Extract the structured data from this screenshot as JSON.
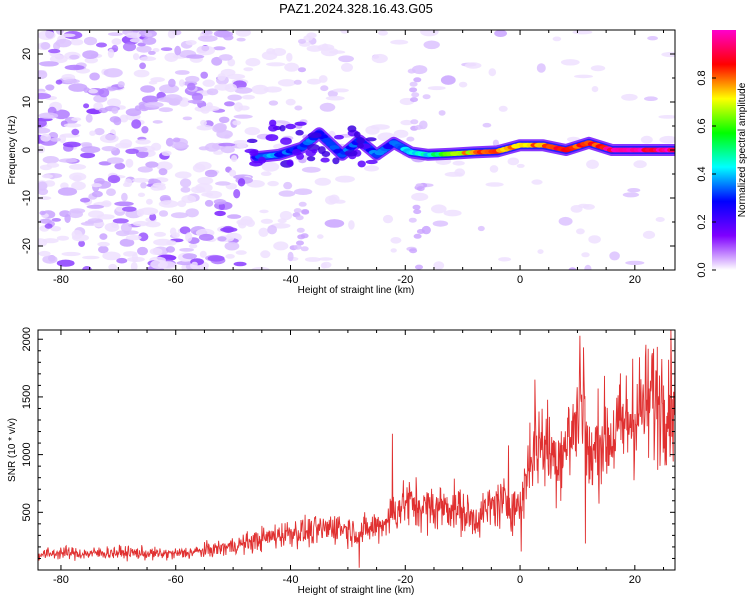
{
  "title": "PAZ1.2024.328.16.43.G05",
  "chart_data": [
    {
      "type": "heatmap",
      "xlabel": "Height of straight line (km)",
      "ylabel": "Frequency (Hz)",
      "xlim": [
        -84,
        27
      ],
      "ylim": [
        -25,
        25
      ],
      "xticks": [
        -80,
        -60,
        -40,
        -20,
        0,
        20
      ],
      "yticks": [
        -20,
        -10,
        0,
        10,
        20
      ],
      "colorbar": {
        "label": "Normalized spectral amplitude",
        "range": [
          0,
          1
        ],
        "ticks": [
          0.0,
          0.2,
          0.4,
          0.6,
          0.8
        ],
        "colormap": [
          "#ffffff",
          "#7f00ff",
          "#0000ff",
          "#00ffff",
          "#00ff00",
          "#ffff00",
          "#ff0000",
          "#ff00cc"
        ]
      },
      "ridge": [
        {
          "x": -46,
          "y": -1.5,
          "amp": 0.3
        },
        {
          "x": -42,
          "y": -1.0,
          "amp": 0.35
        },
        {
          "x": -38,
          "y": 0.5,
          "amp": 0.3
        },
        {
          "x": -35,
          "y": 3.5,
          "amp": 0.3
        },
        {
          "x": -31,
          "y": -1.0,
          "amp": 0.3
        },
        {
          "x": -28,
          "y": 2.0,
          "amp": 0.3
        },
        {
          "x": -25,
          "y": -1.0,
          "amp": 0.35
        },
        {
          "x": -22,
          "y": 1.5,
          "amp": 0.3
        },
        {
          "x": -19,
          "y": -0.5,
          "amp": 0.4
        },
        {
          "x": -16,
          "y": -1.0,
          "amp": 0.45
        },
        {
          "x": -12,
          "y": -0.8,
          "amp": 0.65
        },
        {
          "x": -8,
          "y": -0.5,
          "amp": 0.75
        },
        {
          "x": -4,
          "y": -0.3,
          "amp": 0.85
        },
        {
          "x": 0,
          "y": 1.0,
          "amp": 0.7
        },
        {
          "x": 4,
          "y": 1.0,
          "amp": 0.8
        },
        {
          "x": 8,
          "y": 0.0,
          "amp": 0.9
        },
        {
          "x": 12,
          "y": 1.5,
          "amp": 0.8
        },
        {
          "x": 16,
          "y": 0.0,
          "amp": 0.95
        },
        {
          "x": 20,
          "y": 0.0,
          "amp": 0.95
        },
        {
          "x": 24,
          "y": 0.0,
          "amp": 0.95
        },
        {
          "x": 27,
          "y": 0.0,
          "amp": 0.95
        }
      ]
    },
    {
      "type": "line",
      "xlabel": "Height of straight line (km)",
      "ylabel": "SNR (10 * v/v)",
      "xlim": [
        -84,
        27
      ],
      "ylim": [
        0,
        2080
      ],
      "xticks": [
        -80,
        -60,
        -40,
        -20,
        0,
        20
      ],
      "yticks": [
        500,
        1000,
        1500,
        2000
      ],
      "series": [
        {
          "color": "#e03030",
          "x": [
            -84,
            -80,
            -76,
            -72,
            -68,
            -64,
            -60,
            -56,
            -52,
            -48,
            -44,
            -40,
            -36,
            -32,
            -28,
            -24,
            -20,
            -16,
            -12,
            -8,
            -4,
            0,
            2,
            4,
            6,
            8,
            10,
            11,
            12,
            14,
            16,
            18,
            20,
            22,
            24,
            27
          ],
          "y": [
            130,
            150,
            140,
            150,
            150,
            140,
            140,
            160,
            190,
            230,
            280,
            330,
            330,
            380,
            320,
            400,
            590,
            530,
            560,
            440,
            580,
            550,
            1050,
            1120,
            960,
            1080,
            1300,
            1650,
            900,
            1150,
            1150,
            1250,
            1350,
            1420,
            1480,
            1520
          ]
        }
      ]
    }
  ]
}
